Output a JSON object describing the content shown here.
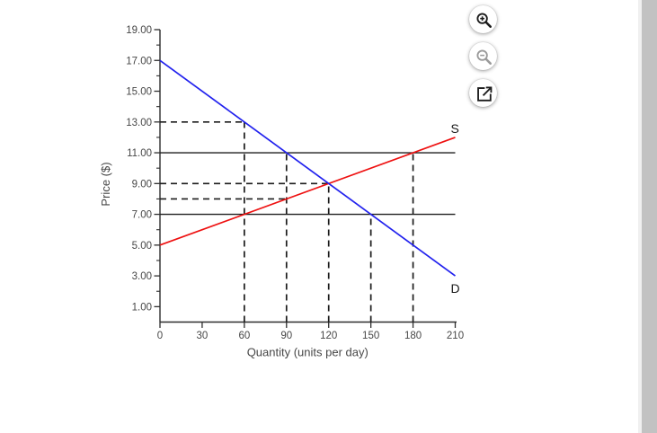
{
  "page": {
    "background": "#ffffff"
  },
  "toolbar": {
    "buttons": [
      {
        "name": "zoom-in",
        "icon": "magnifier-plus-icon",
        "glyph_color": "#1b1b1b"
      },
      {
        "name": "zoom-out",
        "icon": "magnifier-minus-icon",
        "glyph_color": "#9a9a9a"
      },
      {
        "name": "open-in-new",
        "icon": "external-link-icon",
        "glyph_color": "#1b1b1b"
      }
    ]
  },
  "scrollbar": {
    "track_color": "#f0f0f0",
    "thumb_color": "#c2c2c2"
  },
  "chart_data": {
    "type": "line",
    "title": "",
    "xlabel": "Quantity (units per day)",
    "ylabel": "Price ($)",
    "xlim": [
      0,
      210
    ],
    "ylim": [
      0,
      19
    ],
    "grid": false,
    "legend_position": "none",
    "axis_color": "#2e2e2e",
    "tick_label_color": "#474747",
    "xticks": {
      "values": [
        0,
        30,
        60,
        90,
        120,
        150,
        180,
        210
      ],
      "labels": [
        "0",
        "30",
        "60",
        "90",
        "120",
        "150",
        "180",
        "210"
      ]
    },
    "yticks": {
      "values": [
        1,
        3,
        5,
        7,
        9,
        11,
        13,
        15,
        17,
        19
      ],
      "labels": [
        "1.00",
        "3.00",
        "5.00",
        "7.00",
        "9.00",
        "11.00",
        "13.00",
        "15.00",
        "17.00",
        "19.00"
      ],
      "minor_values": [
        2,
        4,
        6,
        8,
        10,
        12,
        14,
        16,
        18
      ]
    },
    "series": [
      {
        "name": "supply",
        "label": "S",
        "color": "#ee1111",
        "points": [
          [
            0,
            5
          ],
          [
            210,
            12
          ]
        ]
      },
      {
        "name": "demand",
        "label": "D",
        "color": "#2222ee",
        "points": [
          [
            0,
            17
          ],
          [
            210,
            3
          ]
        ]
      }
    ],
    "series_label_color": "#1a1a1a",
    "solid_hlines": [
      {
        "price": 11,
        "q_from": 0,
        "q_to": 210,
        "color": "#1f1f1f"
      },
      {
        "price": 7,
        "q_from": 0,
        "q_to": 210,
        "color": "#1f1f1f"
      }
    ],
    "dashed_hlines": [
      {
        "price": 13,
        "q_from": 0,
        "q_to": 60
      },
      {
        "price": 9,
        "q_from": 0,
        "q_to": 120
      },
      {
        "price": 8,
        "q_from": 0,
        "q_to": 90
      }
    ],
    "dashed_vlines": [
      {
        "q": 60,
        "p_from": 0,
        "p_to": 13
      },
      {
        "q": 90,
        "p_from": 0,
        "p_to": 11
      },
      {
        "q": 120,
        "p_from": 0,
        "p_to": 9
      },
      {
        "q": 150,
        "p_from": 0,
        "p_to": 7
      },
      {
        "q": 180,
        "p_from": 0,
        "p_to": 11
      }
    ],
    "dash_color": "#1c1c1c"
  }
}
